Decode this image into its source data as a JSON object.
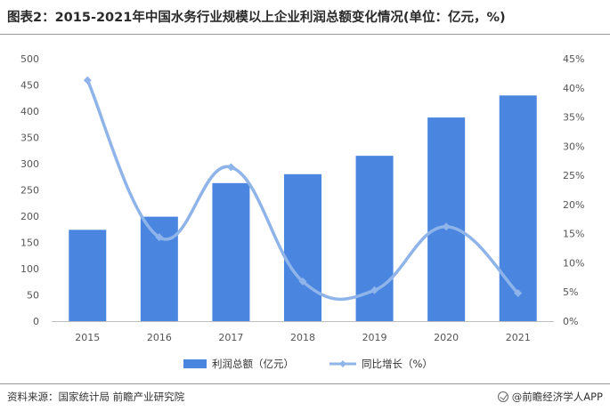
{
  "header": {
    "title": "图表2：2015-2021年中国水务行业规模以上企业利润总额变化情况(单位：亿元，%)"
  },
  "footer": {
    "source": "资料来源：国家统计局 前瞻产业研究院",
    "brand": "@前瞻经济学人APP"
  },
  "chart_data": {
    "type": "bar",
    "categories": [
      "2015",
      "2016",
      "2017",
      "2018",
      "2019",
      "2020",
      "2021"
    ],
    "series": [
      {
        "name": "利润总额（亿元）",
        "type": "bar",
        "axis": "left",
        "color": "#4a86e0",
        "values": [
          174,
          199,
          263,
          280,
          315,
          388,
          430
        ]
      },
      {
        "name": "同比增长（%）",
        "type": "line",
        "axis": "right",
        "color": "#8fb4ea",
        "values": [
          41.3,
          14.4,
          26.4,
          6.8,
          5.3,
          16.2,
          4.8
        ]
      }
    ],
    "y_left": {
      "min": 0,
      "max": 500,
      "ticks": [
        "0",
        "50",
        "100",
        "150",
        "200",
        "250",
        "300",
        "350",
        "400",
        "450",
        "500"
      ]
    },
    "y_right": {
      "min": 0,
      "max": 45,
      "ticks": [
        "0%",
        "5%",
        "10%",
        "15%",
        "20%",
        "25%",
        "30%",
        "35%",
        "40%",
        "45%"
      ]
    },
    "grid": false,
    "legend": {
      "position": "bottom",
      "items": [
        "利润总额（亿元）",
        "同比增长（%）"
      ]
    }
  }
}
